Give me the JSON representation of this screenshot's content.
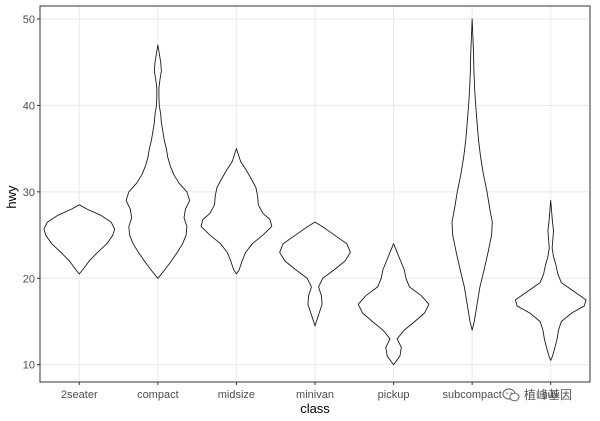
{
  "chart_data": {
    "type": "violin",
    "xlabel": "class",
    "ylabel": "hwy",
    "ylim": [
      8,
      51.5
    ],
    "yticks": [
      10,
      20,
      30,
      40,
      50
    ],
    "grid": true,
    "theme": "bw",
    "colors": {
      "outline": "#1a1a1a",
      "grid": "#ebebeb",
      "border": "#333333",
      "fill": "#ffffff"
    },
    "categories": [
      "2seater",
      "compact",
      "midsize",
      "minivan",
      "pickup",
      "subcompact",
      "suv"
    ],
    "violins": [
      {
        "category": "2seater",
        "range": [
          20.5,
          28.5
        ],
        "profile": [
          [
            20.5,
            0
          ],
          [
            21,
            0.1
          ],
          [
            22,
            0.28
          ],
          [
            23,
            0.52
          ],
          [
            24,
            0.78
          ],
          [
            25,
            0.95
          ],
          [
            25.7,
            1
          ],
          [
            26.5,
            0.9
          ],
          [
            27.3,
            0.6
          ],
          [
            28,
            0.22
          ],
          [
            28.5,
            0
          ]
        ]
      },
      {
        "category": "compact",
        "range": [
          20,
          47
        ],
        "profile": [
          [
            20,
            0
          ],
          [
            21,
            0.2
          ],
          [
            22,
            0.38
          ],
          [
            23,
            0.55
          ],
          [
            24,
            0.7
          ],
          [
            25,
            0.8
          ],
          [
            26,
            0.82
          ],
          [
            27,
            0.74
          ],
          [
            28,
            0.78
          ],
          [
            29,
            0.9
          ],
          [
            30,
            0.82
          ],
          [
            31,
            0.6
          ],
          [
            32,
            0.45
          ],
          [
            33,
            0.35
          ],
          [
            34,
            0.28
          ],
          [
            35,
            0.24
          ],
          [
            36,
            0.18
          ],
          [
            37,
            0.14
          ],
          [
            38,
            0.1
          ],
          [
            39,
            0.08
          ],
          [
            40,
            0.04
          ],
          [
            41,
            0.03
          ],
          [
            42,
            0.03
          ],
          [
            43,
            0.06
          ],
          [
            44,
            0.1
          ],
          [
            45,
            0.08
          ],
          [
            46,
            0.04
          ],
          [
            47,
            0
          ]
        ]
      },
      {
        "category": "midsize",
        "range": [
          20.5,
          35
        ],
        "profile": [
          [
            20.5,
            0
          ],
          [
            21,
            0.08
          ],
          [
            22,
            0.16
          ],
          [
            23,
            0.26
          ],
          [
            24,
            0.45
          ],
          [
            25,
            0.75
          ],
          [
            26,
            1
          ],
          [
            26.8,
            0.95
          ],
          [
            27.5,
            0.75
          ],
          [
            28.5,
            0.62
          ],
          [
            29.5,
            0.6
          ],
          [
            30.5,
            0.55
          ],
          [
            31.5,
            0.42
          ],
          [
            32.5,
            0.28
          ],
          [
            33.5,
            0.12
          ],
          [
            35,
            0
          ]
        ]
      },
      {
        "category": "minivan",
        "range": [
          14.5,
          26.5
        ],
        "profile": [
          [
            14.5,
            0
          ],
          [
            15,
            0.04
          ],
          [
            16,
            0.12
          ],
          [
            17,
            0.2
          ],
          [
            18,
            0.18
          ],
          [
            19,
            0.1
          ],
          [
            20,
            0.22
          ],
          [
            21,
            0.55
          ],
          [
            22,
            0.85
          ],
          [
            23,
            1
          ],
          [
            24,
            0.9
          ],
          [
            25,
            0.55
          ],
          [
            26,
            0.2
          ],
          [
            26.5,
            0
          ]
        ]
      },
      {
        "category": "pickup",
        "range": [
          10,
          24
        ],
        "profile": [
          [
            10,
            0
          ],
          [
            11,
            0.18
          ],
          [
            12,
            0.22
          ],
          [
            13,
            0.1
          ],
          [
            14,
            0.3
          ],
          [
            15,
            0.6
          ],
          [
            16,
            0.88
          ],
          [
            17,
            1
          ],
          [
            18,
            0.78
          ],
          [
            19,
            0.45
          ],
          [
            20,
            0.35
          ],
          [
            21,
            0.3
          ],
          [
            22,
            0.2
          ],
          [
            23,
            0.1
          ],
          [
            24,
            0
          ]
        ]
      },
      {
        "category": "subcompact",
        "range": [
          14,
          50
        ],
        "profile": [
          [
            14,
            0
          ],
          [
            15,
            0.06
          ],
          [
            17,
            0.14
          ],
          [
            19,
            0.22
          ],
          [
            21,
            0.34
          ],
          [
            23,
            0.45
          ],
          [
            25,
            0.55
          ],
          [
            26.5,
            0.57
          ],
          [
            28,
            0.5
          ],
          [
            30,
            0.42
          ],
          [
            32,
            0.32
          ],
          [
            34,
            0.24
          ],
          [
            36,
            0.18
          ],
          [
            38,
            0.14
          ],
          [
            40,
            0.1
          ],
          [
            42,
            0.07
          ],
          [
            44,
            0.05
          ],
          [
            46,
            0.04
          ],
          [
            48,
            0.02
          ],
          [
            50,
            0
          ]
        ]
      },
      {
        "category": "suv",
        "range": [
          10.5,
          29
        ],
        "profile": [
          [
            10.5,
            0
          ],
          [
            11,
            0.05
          ],
          [
            12,
            0.12
          ],
          [
            13,
            0.18
          ],
          [
            14,
            0.22
          ],
          [
            15,
            0.3
          ],
          [
            16,
            0.6
          ],
          [
            16.8,
            0.95
          ],
          [
            17.5,
            1
          ],
          [
            18.5,
            0.65
          ],
          [
            19.5,
            0.3
          ],
          [
            20.5,
            0.2
          ],
          [
            21.5,
            0.15
          ],
          [
            22.5,
            0.08
          ],
          [
            23.5,
            0.04
          ],
          [
            24.5,
            0.06
          ],
          [
            25.5,
            0.08
          ],
          [
            26.5,
            0.05
          ],
          [
            27.5,
            0.03
          ],
          [
            29,
            0
          ]
        ]
      }
    ]
  },
  "watermark": {
    "text": "植峰基因",
    "icon": "wechat-icon"
  }
}
